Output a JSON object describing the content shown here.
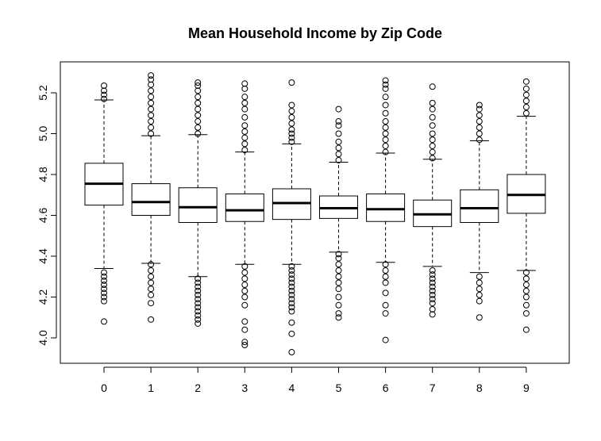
{
  "chart_data": {
    "type": "boxplot",
    "title": "Mean Household Income by Zip Code",
    "xlabel": "",
    "ylabel": "",
    "categories": [
      "0",
      "1",
      "2",
      "3",
      "4",
      "5",
      "6",
      "7",
      "8",
      "9"
    ],
    "ylim": [
      3.9,
      5.3
    ],
    "yticks": [
      "4.0",
      "4.2",
      "4.4",
      "4.6",
      "4.8",
      "5.0",
      "5.2"
    ],
    "boxes": [
      {
        "label": "0",
        "q1": 4.65,
        "median": 4.755,
        "q3": 4.855,
        "whisker_low": 4.34,
        "whisker_high": 5.165,
        "outliers": [
          4.08,
          4.18,
          4.2,
          4.22,
          4.24,
          4.26,
          4.28,
          4.3,
          4.32,
          5.17,
          5.19,
          5.21,
          5.235
        ]
      },
      {
        "label": "1",
        "q1": 4.6,
        "median": 4.665,
        "q3": 4.755,
        "whisker_low": 4.365,
        "whisker_high": 4.99,
        "outliers": [
          4.09,
          4.17,
          4.21,
          4.24,
          4.27,
          4.3,
          4.33,
          4.36,
          5.0,
          5.03,
          5.06,
          5.09,
          5.12,
          5.15,
          5.18,
          5.21,
          5.24,
          5.265,
          5.285
        ]
      },
      {
        "label": "2",
        "q1": 4.565,
        "median": 4.64,
        "q3": 4.735,
        "whisker_low": 4.3,
        "whisker_high": 4.995,
        "outliers": [
          4.07,
          4.09,
          4.11,
          4.13,
          4.15,
          4.17,
          4.19,
          4.21,
          4.23,
          4.25,
          4.27,
          4.29,
          5.0,
          5.03,
          5.06,
          5.09,
          5.12,
          5.15,
          5.18,
          5.21,
          5.235,
          5.25
        ]
      },
      {
        "label": "3",
        "q1": 4.57,
        "median": 4.625,
        "q3": 4.705,
        "whisker_low": 4.36,
        "whisker_high": 4.91,
        "outliers": [
          3.965,
          3.98,
          4.04,
          4.08,
          4.16,
          4.2,
          4.23,
          4.26,
          4.29,
          4.32,
          4.35,
          4.92,
          4.95,
          4.98,
          5.01,
          5.04,
          5.08,
          5.12,
          5.15,
          5.18,
          5.22,
          5.245
        ]
      },
      {
        "label": "4",
        "q1": 4.58,
        "median": 4.66,
        "q3": 4.73,
        "whisker_low": 4.36,
        "whisker_high": 4.95,
        "outliers": [
          3.93,
          4.02,
          4.075,
          4.13,
          4.15,
          4.17,
          4.19,
          4.21,
          4.23,
          4.25,
          4.27,
          4.29,
          4.31,
          4.33,
          4.35,
          4.96,
          4.98,
          5.0,
          5.02,
          5.05,
          5.08,
          5.11,
          5.14,
          5.25
        ]
      },
      {
        "label": "5",
        "q1": 4.585,
        "median": 4.635,
        "q3": 4.695,
        "whisker_low": 4.42,
        "whisker_high": 4.86,
        "outliers": [
          4.1,
          4.12,
          4.16,
          4.2,
          4.24,
          4.27,
          4.3,
          4.33,
          4.36,
          4.39,
          4.41,
          4.87,
          4.9,
          4.93,
          4.96,
          5.0,
          5.04,
          5.06,
          5.12
        ]
      },
      {
        "label": "6",
        "q1": 4.57,
        "median": 4.63,
        "q3": 4.705,
        "whisker_low": 4.37,
        "whisker_high": 4.905,
        "outliers": [
          3.99,
          4.12,
          4.16,
          4.22,
          4.27,
          4.3,
          4.33,
          4.36,
          4.91,
          4.94,
          4.97,
          5.0,
          5.03,
          5.06,
          5.1,
          5.14,
          5.18,
          5.22,
          5.24,
          5.26
        ]
      },
      {
        "label": "7",
        "q1": 4.545,
        "median": 4.605,
        "q3": 4.675,
        "whisker_low": 4.35,
        "whisker_high": 4.875,
        "outliers": [
          4.115,
          4.14,
          4.17,
          4.19,
          4.21,
          4.23,
          4.25,
          4.27,
          4.29,
          4.31,
          4.33,
          4.88,
          4.91,
          4.94,
          4.97,
          5.0,
          5.04,
          5.08,
          5.12,
          5.15,
          5.23
        ]
      },
      {
        "label": "8",
        "q1": 4.565,
        "median": 4.635,
        "q3": 4.725,
        "whisker_low": 4.32,
        "whisker_high": 4.965,
        "outliers": [
          4.1,
          4.18,
          4.21,
          4.24,
          4.27,
          4.3,
          4.97,
          5.0,
          5.03,
          5.06,
          5.09,
          5.12,
          5.14
        ]
      },
      {
        "label": "9",
        "q1": 4.61,
        "median": 4.7,
        "q3": 4.8,
        "whisker_low": 4.33,
        "whisker_high": 5.085,
        "outliers": [
          4.04,
          4.12,
          4.16,
          4.2,
          4.23,
          4.26,
          4.29,
          4.32,
          5.1,
          5.13,
          5.16,
          5.19,
          5.22,
          5.255
        ]
      }
    ],
    "grid": false,
    "legend": "none",
    "colors": {
      "stroke": "#000000",
      "fill": "#ffffff"
    }
  }
}
